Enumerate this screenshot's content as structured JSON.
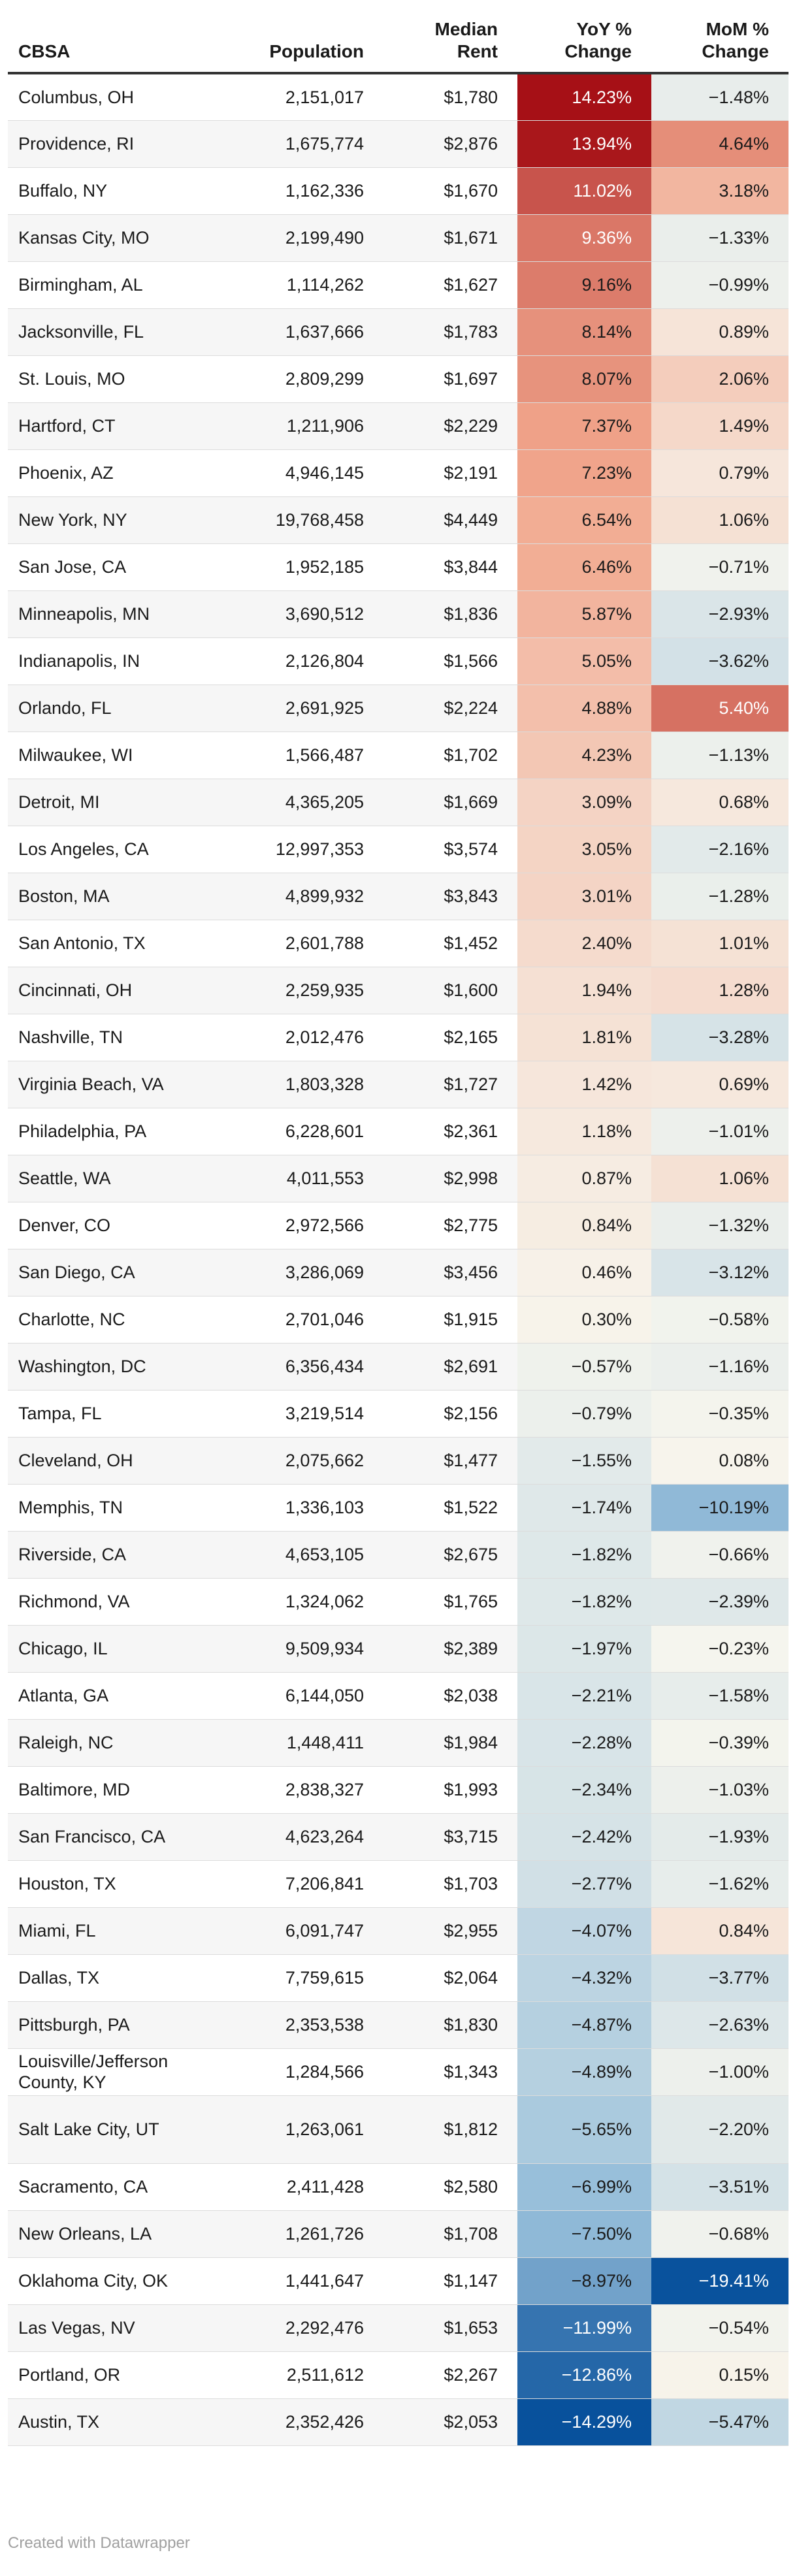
{
  "chart_data": {
    "type": "table",
    "columns": [
      {
        "key": "cbsa",
        "line1": "",
        "line2": "CBSA"
      },
      {
        "key": "population",
        "line1": "",
        "line2": "Population"
      },
      {
        "key": "rent",
        "line1": "Median",
        "line2": "Rent"
      },
      {
        "key": "yoy",
        "line1": "YoY %",
        "line2": "Change"
      },
      {
        "key": "mom",
        "line1": "MoM %",
        "line2": "Change"
      }
    ],
    "rows": [
      {
        "cbsa": "Columbus, OH",
        "population": "2,151,017",
        "rent": "$1,780",
        "yoy": 14.23,
        "mom": -1.48
      },
      {
        "cbsa": "Providence, RI",
        "population": "1,675,774",
        "rent": "$2,876",
        "yoy": 13.94,
        "mom": 4.64
      },
      {
        "cbsa": "Buffalo, NY",
        "population": "1,162,336",
        "rent": "$1,670",
        "yoy": 11.02,
        "mom": 3.18
      },
      {
        "cbsa": "Kansas City, MO",
        "population": "2,199,490",
        "rent": "$1,671",
        "yoy": 9.36,
        "mom": -1.33
      },
      {
        "cbsa": "Birmingham, AL",
        "population": "1,114,262",
        "rent": "$1,627",
        "yoy": 9.16,
        "mom": -0.99
      },
      {
        "cbsa": "Jacksonville, FL",
        "population": "1,637,666",
        "rent": "$1,783",
        "yoy": 8.14,
        "mom": 0.89
      },
      {
        "cbsa": "St. Louis, MO",
        "population": "2,809,299",
        "rent": "$1,697",
        "yoy": 8.07,
        "mom": 2.06
      },
      {
        "cbsa": "Hartford, CT",
        "population": "1,211,906",
        "rent": "$2,229",
        "yoy": 7.37,
        "mom": 1.49
      },
      {
        "cbsa": "Phoenix, AZ",
        "population": "4,946,145",
        "rent": "$2,191",
        "yoy": 7.23,
        "mom": 0.79
      },
      {
        "cbsa": "New York, NY",
        "population": "19,768,458",
        "rent": "$4,449",
        "yoy": 6.54,
        "mom": 1.06
      },
      {
        "cbsa": "San Jose, CA",
        "population": "1,952,185",
        "rent": "$3,844",
        "yoy": 6.46,
        "mom": -0.71
      },
      {
        "cbsa": "Minneapolis, MN",
        "population": "3,690,512",
        "rent": "$1,836",
        "yoy": 5.87,
        "mom": -2.93
      },
      {
        "cbsa": "Indianapolis, IN",
        "population": "2,126,804",
        "rent": "$1,566",
        "yoy": 5.05,
        "mom": -3.62
      },
      {
        "cbsa": "Orlando, FL",
        "population": "2,691,925",
        "rent": "$2,224",
        "yoy": 4.88,
        "mom": 5.4
      },
      {
        "cbsa": "Milwaukee, WI",
        "population": "1,566,487",
        "rent": "$1,702",
        "yoy": 4.23,
        "mom": -1.13
      },
      {
        "cbsa": "Detroit, MI",
        "population": "4,365,205",
        "rent": "$1,669",
        "yoy": 3.09,
        "mom": 0.68
      },
      {
        "cbsa": "Los Angeles, CA",
        "population": "12,997,353",
        "rent": "$3,574",
        "yoy": 3.05,
        "mom": -2.16
      },
      {
        "cbsa": "Boston, MA",
        "population": "4,899,932",
        "rent": "$3,843",
        "yoy": 3.01,
        "mom": -1.28
      },
      {
        "cbsa": "San Antonio, TX",
        "population": "2,601,788",
        "rent": "$1,452",
        "yoy": 2.4,
        "mom": 1.01
      },
      {
        "cbsa": "Cincinnati, OH",
        "population": "2,259,935",
        "rent": "$1,600",
        "yoy": 1.94,
        "mom": 1.28
      },
      {
        "cbsa": "Nashville, TN",
        "population": "2,012,476",
        "rent": "$2,165",
        "yoy": 1.81,
        "mom": -3.28
      },
      {
        "cbsa": "Virginia Beach, VA",
        "population": "1,803,328",
        "rent": "$1,727",
        "yoy": 1.42,
        "mom": 0.69
      },
      {
        "cbsa": "Philadelphia, PA",
        "population": "6,228,601",
        "rent": "$2,361",
        "yoy": 1.18,
        "mom": -1.01
      },
      {
        "cbsa": "Seattle, WA",
        "population": "4,011,553",
        "rent": "$2,998",
        "yoy": 0.87,
        "mom": 1.06
      },
      {
        "cbsa": "Denver, CO",
        "population": "2,972,566",
        "rent": "$2,775",
        "yoy": 0.84,
        "mom": -1.32
      },
      {
        "cbsa": "San Diego, CA",
        "population": "3,286,069",
        "rent": "$3,456",
        "yoy": 0.46,
        "mom": -3.12
      },
      {
        "cbsa": "Charlotte, NC",
        "population": "2,701,046",
        "rent": "$1,915",
        "yoy": 0.3,
        "mom": -0.58
      },
      {
        "cbsa": "Washington, DC",
        "population": "6,356,434",
        "rent": "$2,691",
        "yoy": -0.57,
        "mom": -1.16
      },
      {
        "cbsa": "Tampa, FL",
        "population": "3,219,514",
        "rent": "$2,156",
        "yoy": -0.79,
        "mom": -0.35
      },
      {
        "cbsa": "Cleveland, OH",
        "population": "2,075,662",
        "rent": "$1,477",
        "yoy": -1.55,
        "mom": 0.08
      },
      {
        "cbsa": "Memphis, TN",
        "population": "1,336,103",
        "rent": "$1,522",
        "yoy": -1.74,
        "mom": -10.19
      },
      {
        "cbsa": "Riverside, CA",
        "population": "4,653,105",
        "rent": "$2,675",
        "yoy": -1.82,
        "mom": -0.66
      },
      {
        "cbsa": "Richmond, VA",
        "population": "1,324,062",
        "rent": "$1,765",
        "yoy": -1.82,
        "mom": -2.39
      },
      {
        "cbsa": "Chicago, IL",
        "population": "9,509,934",
        "rent": "$2,389",
        "yoy": -1.97,
        "mom": -0.23
      },
      {
        "cbsa": "Atlanta, GA",
        "population": "6,144,050",
        "rent": "$2,038",
        "yoy": -2.21,
        "mom": -1.58
      },
      {
        "cbsa": "Raleigh, NC",
        "population": "1,448,411",
        "rent": "$1,984",
        "yoy": -2.28,
        "mom": -0.39
      },
      {
        "cbsa": "Baltimore, MD",
        "population": "2,838,327",
        "rent": "$1,993",
        "yoy": -2.34,
        "mom": -1.03
      },
      {
        "cbsa": "San Francisco, CA",
        "population": "4,623,264",
        "rent": "$3,715",
        "yoy": -2.42,
        "mom": -1.93
      },
      {
        "cbsa": "Houston, TX",
        "population": "7,206,841",
        "rent": "$1,703",
        "yoy": -2.77,
        "mom": -1.62
      },
      {
        "cbsa": "Miami, FL",
        "population": "6,091,747",
        "rent": "$2,955",
        "yoy": -4.07,
        "mom": 0.84
      },
      {
        "cbsa": "Dallas, TX",
        "population": "7,759,615",
        "rent": "$2,064",
        "yoy": -4.32,
        "mom": -3.77
      },
      {
        "cbsa": "Pittsburgh, PA",
        "population": "2,353,538",
        "rent": "$1,830",
        "yoy": -4.87,
        "mom": -2.63
      },
      {
        "cbsa": "Louisville/Jefferson County, KY",
        "population": "1,284,566",
        "rent": "$1,343",
        "yoy": -4.89,
        "mom": -1.0
      },
      {
        "cbsa": "Salt Lake City, UT",
        "population": "1,263,061",
        "rent": "$1,812",
        "yoy": -5.65,
        "mom": -2.2
      },
      {
        "cbsa": "Sacramento, CA",
        "population": "2,411,428",
        "rent": "$2,580",
        "yoy": -6.99,
        "mom": -3.51
      },
      {
        "cbsa": "New Orleans, LA",
        "population": "1,261,726",
        "rent": "$1,708",
        "yoy": -7.5,
        "mom": -0.68
      },
      {
        "cbsa": "Oklahoma City, OK",
        "population": "1,441,647",
        "rent": "$1,147",
        "yoy": -8.97,
        "mom": -19.41
      },
      {
        "cbsa": "Las Vegas, NV",
        "population": "2,292,476",
        "rent": "$1,653",
        "yoy": -11.99,
        "mom": -0.54
      },
      {
        "cbsa": "Portland, OR",
        "population": "2,511,612",
        "rent": "$2,267",
        "yoy": -12.86,
        "mom": 0.15
      },
      {
        "cbsa": "Austin, TX",
        "population": "2,352,426",
        "rent": "$2,053",
        "yoy": -14.29,
        "mom": -5.47
      }
    ],
    "colors": {
      "positive_max": "#a50f15",
      "neutral": "#f7f6ee",
      "negative_max": "#08519c",
      "text_dark": "#1a1a1a",
      "text_light": "#ffffff"
    }
  },
  "footer": {
    "credit": "Created with Datawrapper"
  }
}
